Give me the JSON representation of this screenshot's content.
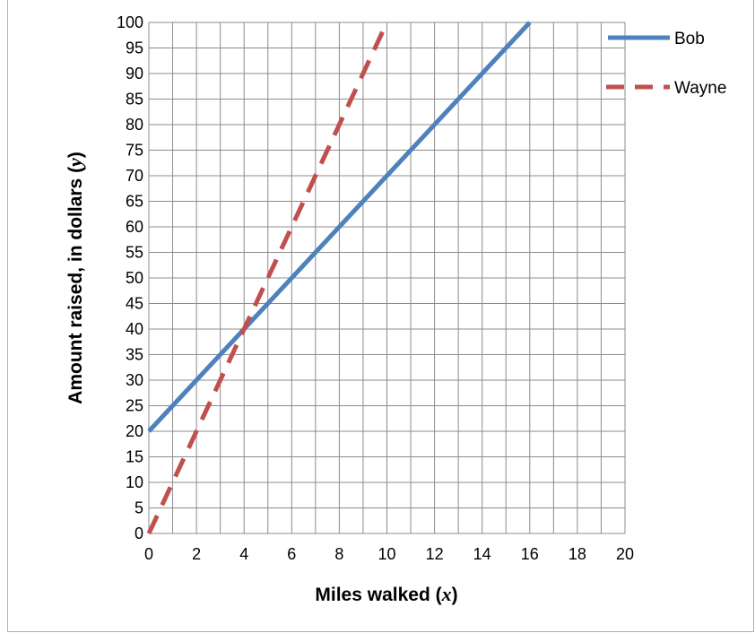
{
  "chart_data": {
    "type": "line",
    "title": "",
    "xlabel": {
      "text": "Miles walked (",
      "var": "x",
      "close": ")"
    },
    "ylabel": {
      "text": "Amount raised, in dollars (",
      "var": "y",
      "close": ")"
    },
    "xlim": [
      0,
      20
    ],
    "ylim": [
      0,
      100
    ],
    "xticks": [
      "0",
      "2",
      "4",
      "6",
      "8",
      "10",
      "12",
      "14",
      "16",
      "18",
      "20"
    ],
    "yticks": [
      "0",
      "5",
      "10",
      "15",
      "20",
      "25",
      "30",
      "35",
      "40",
      "45",
      "50",
      "55",
      "60",
      "65",
      "70",
      "75",
      "80",
      "85",
      "90",
      "95",
      "100"
    ],
    "grid": true,
    "legend_position": "top-right",
    "series": [
      {
        "name": "Bob",
        "x": [
          0,
          16
        ],
        "y": [
          20,
          100
        ],
        "color": "#4f81bd",
        "style": "solid"
      },
      {
        "name": "Wayne",
        "x": [
          0,
          10
        ],
        "y": [
          0,
          100
        ],
        "color": "#c0504d",
        "style": "dashed"
      }
    ]
  }
}
